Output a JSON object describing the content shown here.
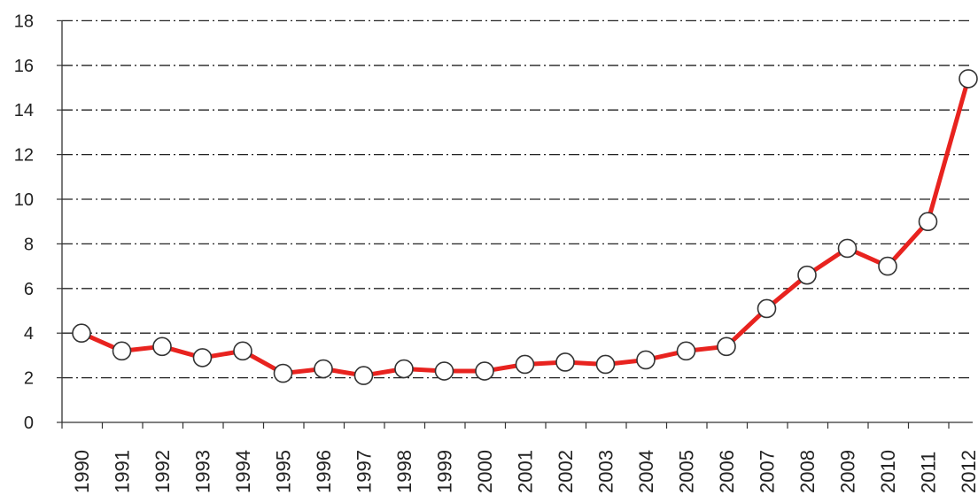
{
  "chart_data": {
    "type": "line",
    "title": "",
    "xlabel": "",
    "ylabel": "",
    "ylim": [
      0,
      18
    ],
    "yticks": [
      0,
      2,
      4,
      6,
      8,
      10,
      12,
      14,
      16,
      18
    ],
    "ytick_labels": [
      "0",
      "2",
      "4",
      "6",
      "8",
      "10",
      "12",
      "14",
      "16",
      "18"
    ],
    "grid": "horizontal dash-dot",
    "categories": [
      "1990",
      "1991",
      "1992",
      "1993",
      "1994",
      "1995",
      "1996",
      "1997",
      "1998",
      "1999",
      "2000",
      "2001",
      "2002",
      "2003",
      "2004",
      "2005",
      "2006",
      "2007",
      "2008",
      "2009",
      "2010",
      "2011",
      "2012"
    ],
    "series": [
      {
        "values": [
          4.0,
          3.2,
          3.4,
          2.9,
          3.2,
          2.2,
          2.4,
          2.1,
          2.4,
          2.3,
          2.3,
          2.6,
          2.7,
          2.6,
          2.8,
          3.2,
          3.4,
          5.1,
          6.6,
          7.8,
          7.0,
          9.0,
          15.4
        ]
      }
    ],
    "colors": {
      "line": "#e8231f",
      "marker_fill": "#ffffff",
      "marker_stroke": "#333333",
      "grid": "#222222"
    }
  }
}
